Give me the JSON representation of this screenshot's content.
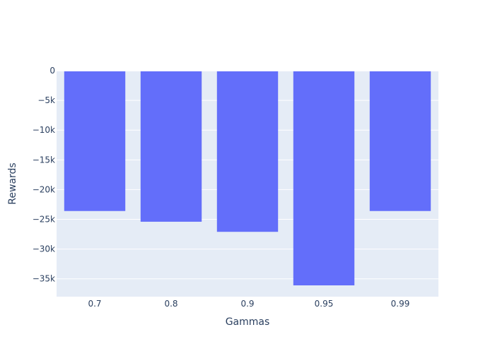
{
  "chart_data": {
    "type": "bar",
    "categories": [
      "0.7",
      "0.8",
      "0.9",
      "0.95",
      "0.99"
    ],
    "values": [
      -23600,
      -25400,
      -27100,
      -36100,
      -23600
    ],
    "xlabel": "Gammas",
    "ylabel": "Rewards",
    "ylim": [
      -38000,
      0
    ],
    "yticks": [
      0,
      -5000,
      -10000,
      -15000,
      -20000,
      -25000,
      -30000,
      -35000
    ],
    "ytick_labels": [
      "0",
      "−5k",
      "−10k",
      "−15k",
      "−20k",
      "−25k",
      "−30k",
      "−35k"
    ],
    "grid": true,
    "legend": "none",
    "colors": {
      "bar": "#636efa",
      "plot_bg": "#e5ecf6",
      "grid": "#ffffff",
      "text": "#2a3f5f"
    }
  }
}
